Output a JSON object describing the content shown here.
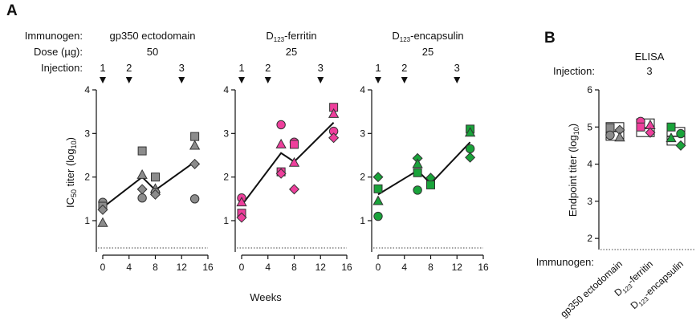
{
  "panels": {
    "A": {
      "letter": "A",
      "row_labels": {
        "immunogen": "Immunogen:",
        "dose": "Dose (µg):",
        "injection": "Injection:"
      },
      "ylabel_main": "IC",
      "ylabel_sub": "50",
      "ylabel_rest": " titer (log",
      "ylabel_sub2": "10",
      "ylabel_end": ")",
      "xlabel": "Weeks"
    },
    "B": {
      "letter": "B",
      "assay": "ELISA",
      "injection_label": "Injection:",
      "injection_value": "3",
      "ylabel": "Endpoint titer (log",
      "ylabel_sub": "10",
      "ylabel_end": ")",
      "xlabel": "Immunogen:"
    }
  },
  "colors": {
    "gray": "#8c8c8c",
    "pink": "#ee3f9c",
    "green": "#19a33a",
    "stroke": "#333333"
  },
  "chart_data": [
    {
      "type": "scatter",
      "immunogen": {
        "pre": "",
        "sub": "",
        "post": "gp350 ectodomain"
      },
      "dose": "50",
      "color": "#8c8c8c",
      "xlabel": "Weeks",
      "ylabel": "IC50 titer (log10)",
      "xlim": [
        0,
        16
      ],
      "ylim": [
        0.3,
        4
      ],
      "xticks": [
        0,
        4,
        8,
        12,
        16
      ],
      "yticks": [
        1,
        2,
        3,
        4
      ],
      "limit_of_detection": 0.3,
      "injections": [
        {
          "label": "1",
          "week": 0
        },
        {
          "label": "2",
          "week": 4
        },
        {
          "label": "3",
          "week": 12
        }
      ],
      "mean_line": {
        "x": [
          0,
          6,
          8,
          14
        ],
        "y": [
          1.3,
          2.0,
          1.7,
          2.35
        ]
      },
      "points": [
        {
          "shape": "circle",
          "x": 0,
          "y": 1.42
        },
        {
          "shape": "square",
          "x": 0,
          "y": 1.33
        },
        {
          "shape": "diamond",
          "x": 0,
          "y": 1.25
        },
        {
          "shape": "triangle",
          "x": 0,
          "y": 0.95
        },
        {
          "shape": "square",
          "x": 6,
          "y": 2.6
        },
        {
          "shape": "triangle",
          "x": 6,
          "y": 2.05
        },
        {
          "shape": "diamond",
          "x": 6,
          "y": 1.72
        },
        {
          "shape": "circle",
          "x": 6,
          "y": 1.52
        },
        {
          "shape": "square",
          "x": 8,
          "y": 2.0
        },
        {
          "shape": "triangle",
          "x": 8,
          "y": 1.73
        },
        {
          "shape": "circle",
          "x": 8,
          "y": 1.65
        },
        {
          "shape": "diamond",
          "x": 8,
          "y": 1.6
        },
        {
          "shape": "square",
          "x": 14,
          "y": 2.93
        },
        {
          "shape": "triangle",
          "x": 14,
          "y": 2.72
        },
        {
          "shape": "diamond",
          "x": 14,
          "y": 2.3
        },
        {
          "shape": "circle",
          "x": 14,
          "y": 1.5
        }
      ]
    },
    {
      "type": "scatter",
      "immunogen": {
        "pre": "D",
        "sub": "123",
        "post": "-ferritin"
      },
      "dose": "25",
      "color": "#ee3f9c",
      "xlabel": "Weeks",
      "ylabel": "IC50 titer (log10)",
      "xlim": [
        0,
        16
      ],
      "ylim": [
        0.3,
        4
      ],
      "xticks": [
        0,
        4,
        8,
        12,
        16
      ],
      "yticks": [
        1,
        2,
        3,
        4
      ],
      "limit_of_detection": 0.3,
      "injections": [
        {
          "label": "1",
          "week": 0
        },
        {
          "label": "2",
          "week": 4
        },
        {
          "label": "3",
          "week": 12
        }
      ],
      "mean_line": {
        "x": [
          0,
          6,
          8,
          14
        ],
        "y": [
          1.35,
          2.55,
          2.35,
          3.25
        ]
      },
      "points": [
        {
          "shape": "circle",
          "x": 0,
          "y": 1.52
        },
        {
          "shape": "triangle",
          "x": 0,
          "y": 1.42
        },
        {
          "shape": "square",
          "x": 0,
          "y": 1.17
        },
        {
          "shape": "diamond",
          "x": 0,
          "y": 1.07
        },
        {
          "shape": "circle",
          "x": 6,
          "y": 3.2
        },
        {
          "shape": "triangle",
          "x": 6,
          "y": 2.75
        },
        {
          "shape": "square",
          "x": 6,
          "y": 2.12
        },
        {
          "shape": "diamond",
          "x": 6,
          "y": 2.08
        },
        {
          "shape": "circle",
          "x": 8,
          "y": 2.8
        },
        {
          "shape": "square",
          "x": 8,
          "y": 2.75
        },
        {
          "shape": "triangle",
          "x": 8,
          "y": 2.33
        },
        {
          "shape": "diamond",
          "x": 8,
          "y": 1.72
        },
        {
          "shape": "square",
          "x": 14,
          "y": 3.6
        },
        {
          "shape": "triangle",
          "x": 14,
          "y": 3.45
        },
        {
          "shape": "circle",
          "x": 14,
          "y": 3.05
        },
        {
          "shape": "diamond",
          "x": 14,
          "y": 2.9
        }
      ]
    },
    {
      "type": "scatter",
      "immunogen": {
        "pre": "D",
        "sub": "123",
        "post": "-encapsulin"
      },
      "dose": "25",
      "color": "#19a33a",
      "xlabel": "Weeks",
      "ylabel": "IC50 titer (log10)",
      "xlim": [
        0,
        16
      ],
      "ylim": [
        0.3,
        4
      ],
      "xticks": [
        0,
        4,
        8,
        12,
        16
      ],
      "yticks": [
        1,
        2,
        3,
        4
      ],
      "limit_of_detection": 0.3,
      "injections": [
        {
          "label": "1",
          "week": 0
        },
        {
          "label": "2",
          "week": 4
        },
        {
          "label": "3",
          "week": 12
        }
      ],
      "mean_line": {
        "x": [
          0,
          6,
          8,
          14
        ],
        "y": [
          1.6,
          2.15,
          1.85,
          2.8
        ]
      },
      "points": [
        {
          "shape": "diamond",
          "x": 0,
          "y": 2.0
        },
        {
          "shape": "square",
          "x": 0,
          "y": 1.73
        },
        {
          "shape": "triangle",
          "x": 0,
          "y": 1.45
        },
        {
          "shape": "circle",
          "x": 0,
          "y": 1.1
        },
        {
          "shape": "diamond",
          "x": 6,
          "y": 2.43
        },
        {
          "shape": "triangle",
          "x": 6,
          "y": 2.3
        },
        {
          "shape": "square",
          "x": 6,
          "y": 2.1
        },
        {
          "shape": "circle",
          "x": 6,
          "y": 1.7
        },
        {
          "shape": "diamond",
          "x": 8,
          "y": 1.98
        },
        {
          "shape": "square",
          "x": 8,
          "y": 1.82
        },
        {
          "shape": "square",
          "x": 14,
          "y": 3.1
        },
        {
          "shape": "triangle",
          "x": 14,
          "y": 3.02
        },
        {
          "shape": "circle",
          "x": 14,
          "y": 2.65
        },
        {
          "shape": "diamond",
          "x": 14,
          "y": 2.45
        }
      ]
    },
    {
      "type": "scatter",
      "title": "ELISA",
      "xlabel": "Immunogen:",
      "ylabel": "Endpoint titer (log10)",
      "ylim": [
        1.7,
        6
      ],
      "yticks": [
        2,
        3,
        4,
        5,
        6
      ],
      "limit_of_detection": 1.7,
      "categories": [
        {
          "pre": "gp350 ectodomain",
          "sub": "",
          "post": ""
        },
        {
          "pre": "D",
          "sub": "123",
          "post": "-ferritin"
        },
        {
          "pre": "D",
          "sub": "123",
          "post": "-encapsulin"
        }
      ],
      "series": [
        {
          "category": 0,
          "color": "#8c8c8c",
          "mean": 4.88,
          "points": [
            {
              "shape": "square",
              "y": 4.98
            },
            {
              "shape": "diamond",
              "y": 4.92
            },
            {
              "shape": "circle",
              "y": 4.78
            },
            {
              "shape": "triangle",
              "y": 4.72
            }
          ]
        },
        {
          "category": 1,
          "color": "#ee3f9c",
          "mean": 4.98,
          "points": [
            {
              "shape": "circle",
              "y": 5.15
            },
            {
              "shape": "triangle",
              "y": 5.05
            },
            {
              "shape": "square",
              "y": 5.0
            },
            {
              "shape": "diamond",
              "y": 4.85
            }
          ]
        },
        {
          "category": 2,
          "color": "#19a33a",
          "mean": 4.75,
          "points": [
            {
              "shape": "square",
              "y": 5.0
            },
            {
              "shape": "circle",
              "y": 4.82
            },
            {
              "shape": "triangle",
              "y": 4.7
            },
            {
              "shape": "diamond",
              "y": 4.5
            }
          ]
        }
      ]
    }
  ]
}
